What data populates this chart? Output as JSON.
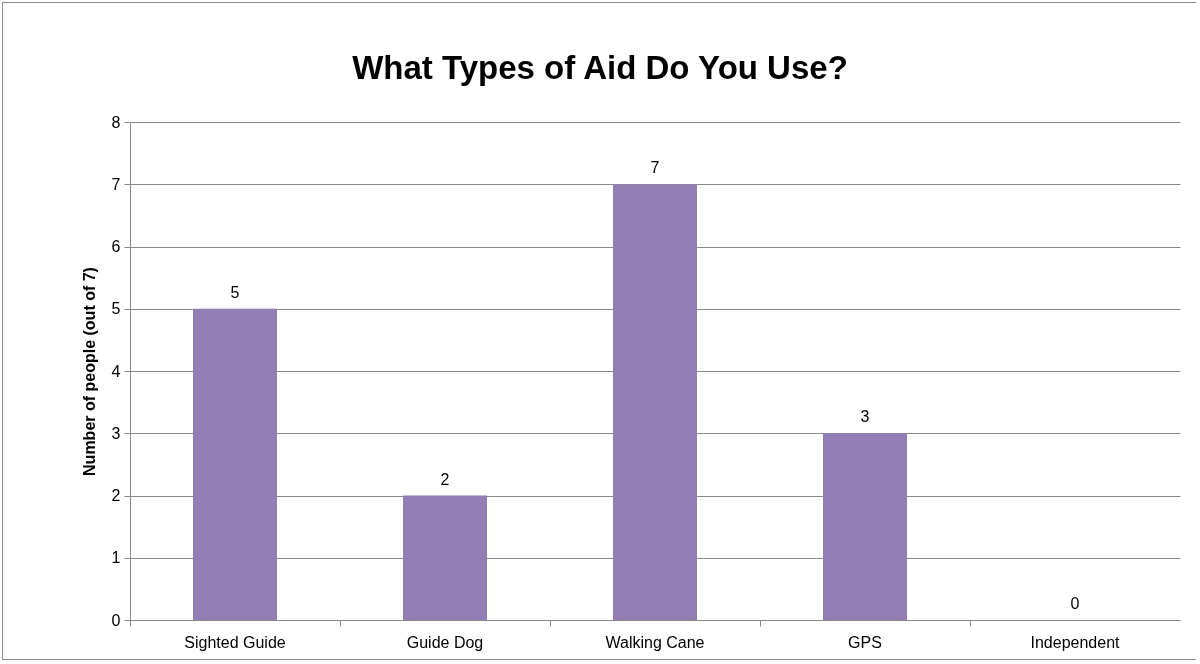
{
  "chart_data": {
    "type": "bar",
    "title": "What Types of Aid Do You Use?",
    "ylabel": "Number of people (out of 7)",
    "categories": [
      "Sighted Guide",
      "Guide Dog",
      "Walking Cane",
      "GPS",
      "Independent"
    ],
    "values": [
      5,
      2,
      7,
      3,
      0
    ],
    "color": "#927db4",
    "ylim": [
      0,
      8
    ],
    "yticks": [
      0,
      1,
      2,
      3,
      4,
      5,
      6,
      7,
      8
    ],
    "grid": "y",
    "data_labels": true
  }
}
